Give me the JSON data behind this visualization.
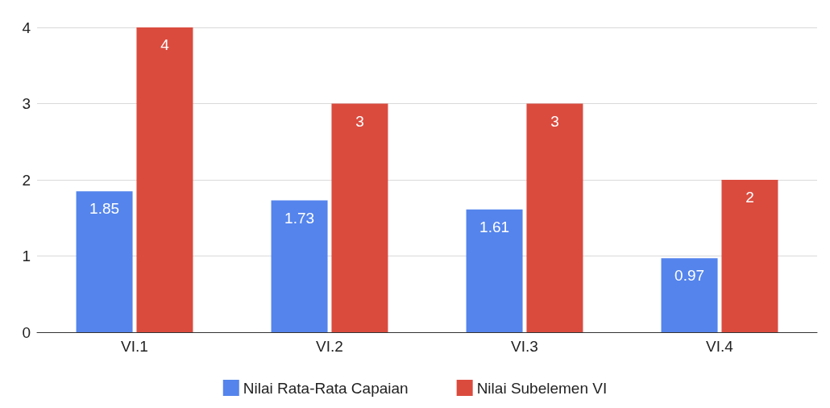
{
  "chart_data": {
    "type": "bar",
    "categories": [
      "VI.1",
      "VI.2",
      "VI.3",
      "VI.4"
    ],
    "series": [
      {
        "name": "Nilai Rata-Rata Capaian",
        "color": "#5484ec",
        "values": [
          1.85,
          1.73,
          1.61,
          0.97
        ]
      },
      {
        "name": "Nilai Subelemen VI",
        "color": "#da4b3e",
        "values": [
          4,
          3,
          3,
          2
        ]
      }
    ],
    "ylim": [
      0,
      4
    ],
    "yticks": [
      0,
      1,
      2,
      3,
      4
    ],
    "grid": "y",
    "legend": "bottom",
    "data_labels": true
  }
}
